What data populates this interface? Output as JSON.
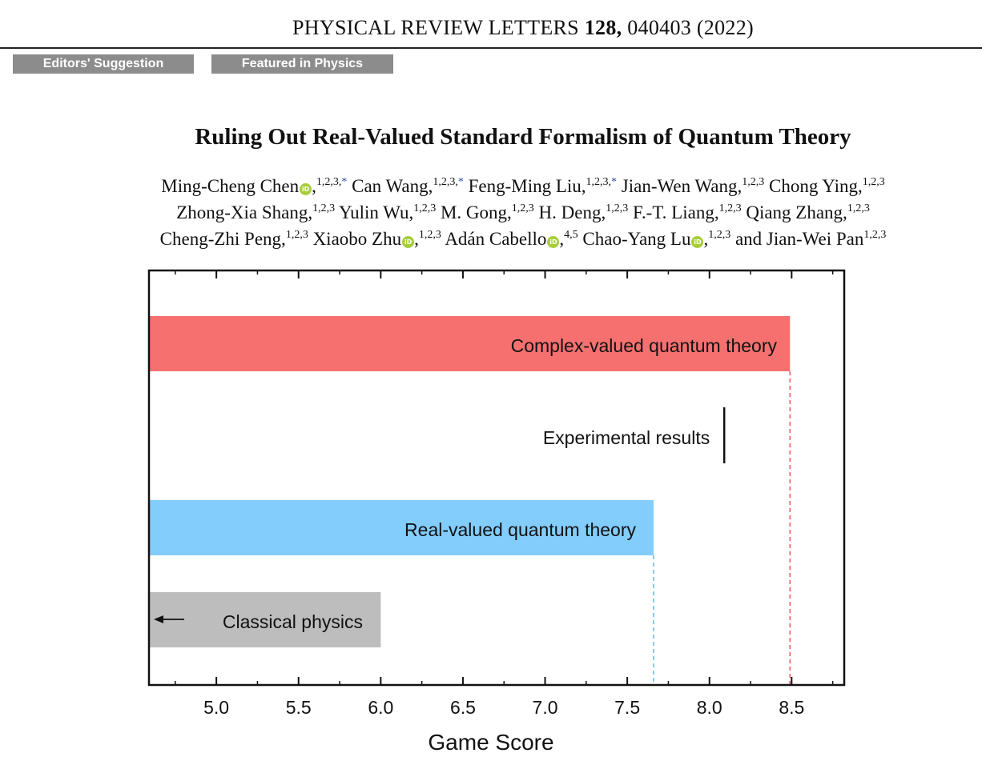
{
  "journal": {
    "name": "PHYSICAL REVIEW LETTERS",
    "volume": "128,",
    "article": "040403 (2022)"
  },
  "badges": [
    "Editors' Suggestion",
    "Featured in Physics"
  ],
  "title": "Ruling Out Real-Valued Standard Formalism of Quantum Theory",
  "authors": {
    "line1": [
      {
        "name": "Ming-Cheng Chen",
        "orcid": true,
        "aff": "1,2,3,",
        "star": "*"
      },
      {
        "name": "Can Wang,",
        "aff": "1,2,3,",
        "star": "*"
      },
      {
        "name": "Feng-Ming Liu,",
        "aff": "1,2,3,",
        "star": "*"
      },
      {
        "name": "Jian-Wen Wang,",
        "aff": "1,2,3"
      },
      {
        "name": "Chong Ying,",
        "aff": "1,2,3"
      }
    ],
    "line2": [
      {
        "name": "Zhong-Xia Shang,",
        "aff": "1,2,3"
      },
      {
        "name": "Yulin Wu,",
        "aff": "1,2,3"
      },
      {
        "name": "M. Gong,",
        "aff": "1,2,3"
      },
      {
        "name": "H. Deng,",
        "aff": "1,2,3"
      },
      {
        "name": "F.-T. Liang,",
        "aff": "1,2,3"
      },
      {
        "name": "Qiang Zhang,",
        "aff": "1,2,3"
      }
    ],
    "line3": [
      {
        "name": "Cheng-Zhi Peng,",
        "aff": "1,2,3"
      },
      {
        "name": "Xiaobo Zhu",
        "orcid": true,
        "aff": "1,2,3"
      },
      {
        "name": "Adán Cabello",
        "orcid": true,
        "aff": "4,5"
      },
      {
        "name": "Chao-Yang Lu",
        "orcid": true,
        "aff": "1,2,3"
      },
      {
        "name": "and Jian-Wei Pan",
        "aff": "1,2,3"
      }
    ]
  },
  "chart_data": {
    "type": "bar",
    "orientation": "horizontal",
    "xlabel": "Game Score",
    "xlim": [
      4.59,
      8.82
    ],
    "xticks": [
      "5.0",
      "5.5",
      "6.0",
      "6.5",
      "7.0",
      "7.5",
      "8.0",
      "8.5"
    ],
    "bars": [
      {
        "label": "Complex-valued quantum theory",
        "value": 8.49,
        "color": "#f77070",
        "dash_color": "#e25a5a"
      },
      {
        "label": "Real-valued quantum theory",
        "value": 7.66,
        "color": "#83cdfd",
        "dash_color": "#66b8ea"
      },
      {
        "label": "Classical physics",
        "value": 6.0,
        "color": "#bdbdbd"
      }
    ],
    "experimental": {
      "label": "Experimental results",
      "value": 8.09
    },
    "grid": false
  }
}
